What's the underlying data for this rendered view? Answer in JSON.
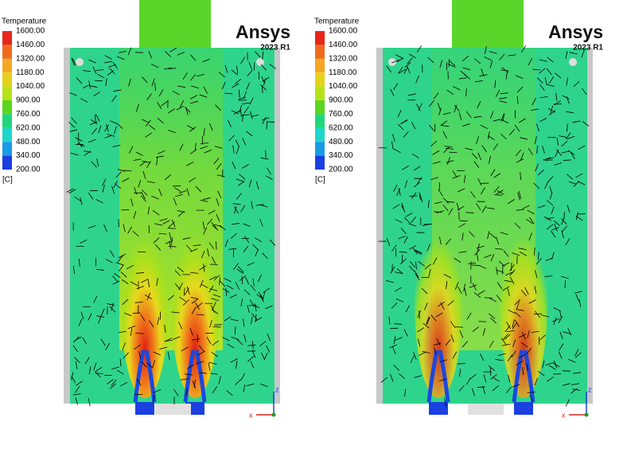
{
  "panels": [
    {
      "legend": {
        "title": "Temperature",
        "levels": [
          "1600.00",
          "1460.00",
          "1320.00",
          "1180.00",
          "1040.00",
          "900.00",
          "760.00",
          "620.00",
          "480.00",
          "340.00",
          "200.00"
        ],
        "unit": "[C]"
      },
      "logo": "Ansys",
      "version": "2023 R1",
      "axes": {
        "x": "x",
        "z": "z"
      }
    },
    {
      "legend": {
        "title": "Temperature",
        "levels": [
          "1600.00",
          "1460.00",
          "1320.00",
          "1180.00",
          "1040.00",
          "900.00",
          "760.00",
          "620.00",
          "480.00",
          "340.00",
          "200.00"
        ],
        "unit": "[C]"
      },
      "logo": "Ansys",
      "version": "2023 R1",
      "axes": {
        "x": "x",
        "z": "z"
      }
    }
  ]
}
